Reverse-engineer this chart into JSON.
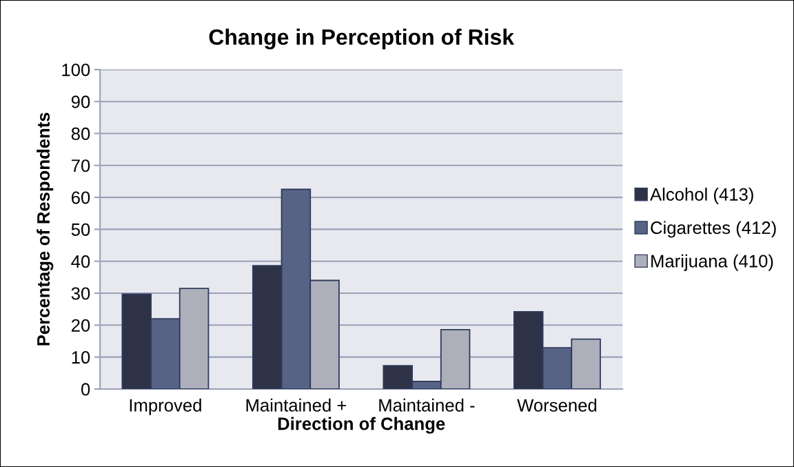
{
  "chart_data": {
    "type": "bar",
    "title": "Change in Perception of Risk",
    "xlabel": "Direction of Change",
    "ylabel": "Percentage of Respondents",
    "categories": [
      "Improved",
      "Maintained +",
      "Maintained -",
      "Worsened"
    ],
    "series": [
      {
        "name": "Alcohol (413)",
        "color": "#2e3247",
        "values": [
          29.7,
          38.6,
          7.3,
          24.2
        ]
      },
      {
        "name": "Cigarettes (412)",
        "color": "#566384",
        "values": [
          22.0,
          62.5,
          2.4,
          12.9
        ]
      },
      {
        "name": "Marijuana (410)",
        "color": "#adb0bb",
        "values": [
          31.5,
          34.0,
          18.6,
          15.6
        ]
      }
    ],
    "ylim": [
      0,
      100
    ],
    "yticks": [
      0,
      10,
      20,
      30,
      40,
      50,
      60,
      70,
      80,
      90,
      100
    ],
    "grid": "y",
    "legend": "right"
  }
}
